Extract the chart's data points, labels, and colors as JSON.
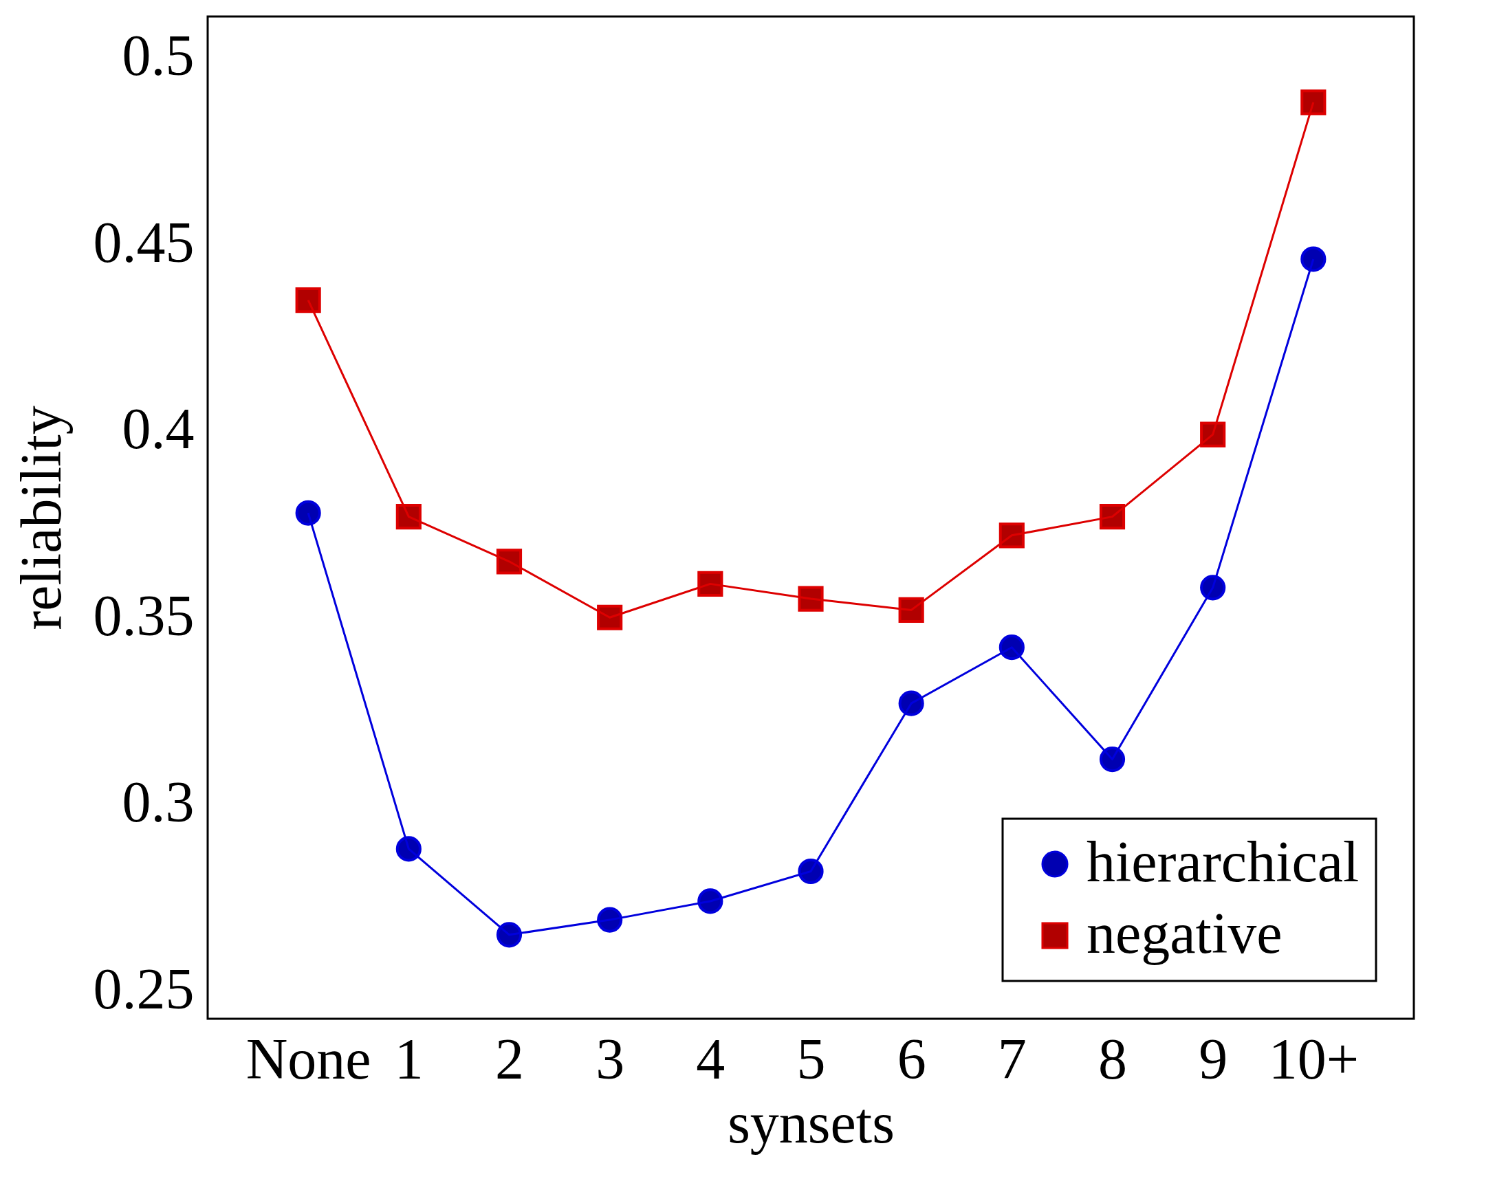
{
  "chart_data": {
    "type": "line",
    "xlabel": "synsets",
    "ylabel": "reliability",
    "categories": [
      "None",
      "1",
      "2",
      "3",
      "4",
      "5",
      "6",
      "7",
      "8",
      "9",
      "10+"
    ],
    "series": [
      {
        "name": "hierarchical",
        "color": "#0000dd",
        "marker": "circle",
        "values": [
          0.378,
          0.288,
          0.265,
          0.269,
          0.274,
          0.282,
          0.327,
          0.342,
          0.312,
          0.358,
          0.446
        ]
      },
      {
        "name": "negative",
        "color": "#dd0000",
        "marker": "square",
        "values": [
          0.435,
          0.377,
          0.365,
          0.35,
          0.359,
          0.355,
          0.352,
          0.372,
          0.377,
          0.399,
          0.488
        ]
      }
    ],
    "ylim": [
      0.2425,
      0.511
    ],
    "yticks": [
      0.25,
      0.3,
      0.35,
      0.4,
      0.45,
      0.5
    ],
    "grid": false,
    "legend": "bottom right",
    "line_style": "solid"
  }
}
